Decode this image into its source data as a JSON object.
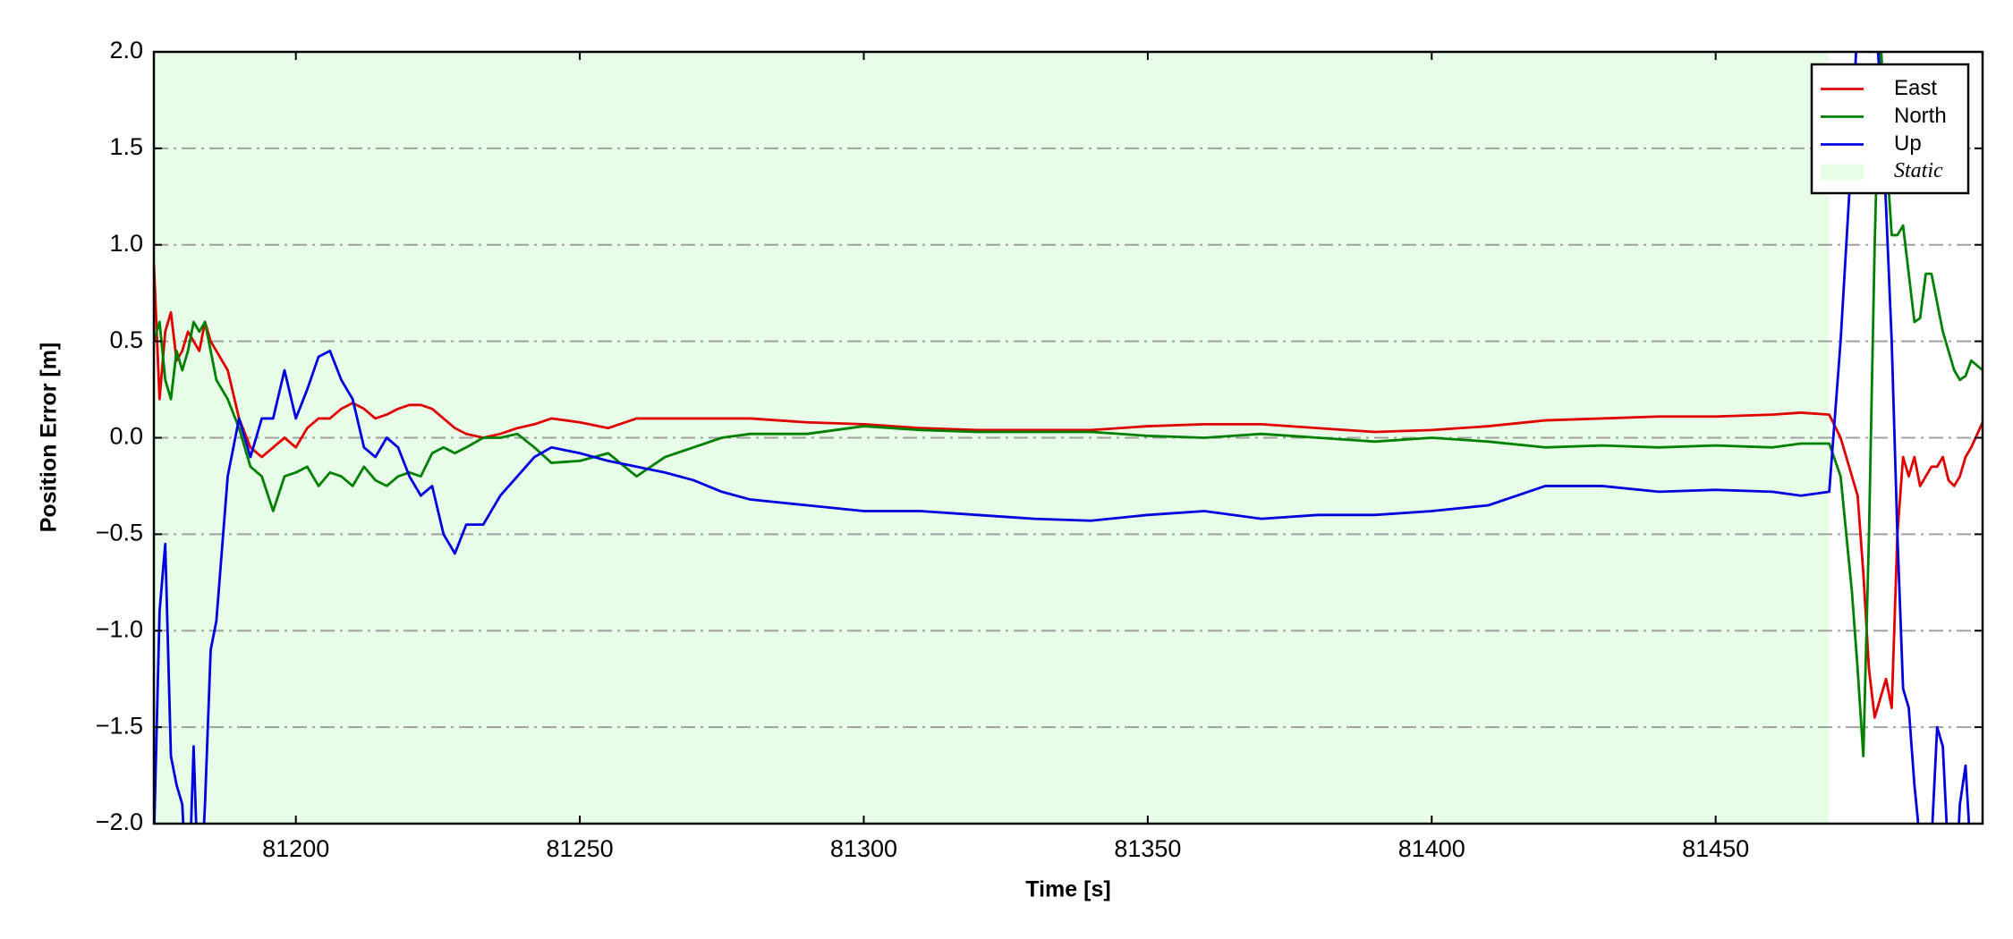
{
  "chart_data": {
    "type": "line",
    "xlabel": "Time [s]",
    "ylabel": "Position Error [m]",
    "xlim": [
      81175,
      81497
    ],
    "ylim": [
      -2.0,
      2.0
    ],
    "xticks": [
      81200,
      81250,
      81300,
      81350,
      81400,
      81450
    ],
    "yticks": [
      {
        "value": -2.0,
        "label": "−2.0"
      },
      {
        "value": -1.5,
        "label": "−1.5"
      },
      {
        "value": -1.0,
        "label": "−1.0"
      },
      {
        "value": -0.5,
        "label": "−0.5"
      },
      {
        "value": 0.0,
        "label": "0.0"
      },
      {
        "value": 0.5,
        "label": "0.5"
      },
      {
        "value": 1.0,
        "label": "1.0"
      },
      {
        "value": 1.5,
        "label": "1.5"
      },
      {
        "value": 2.0,
        "label": "2.0"
      }
    ],
    "grid": true,
    "legend": "upper right",
    "static": {
      "label": "Static",
      "range": [
        81175,
        81470
      ],
      "color": "#e8fde8"
    },
    "x": [
      81175,
      81176,
      81177,
      81178,
      81179,
      81180,
      81181,
      81182,
      81183,
      81184,
      81185,
      81186,
      81188,
      81190,
      81192,
      81194,
      81196,
      81198,
      81200,
      81202,
      81204,
      81206,
      81208,
      81210,
      81212,
      81214,
      81216,
      81218,
      81220,
      81222,
      81224,
      81226,
      81228,
      81230,
      81233,
      81236,
      81239,
      81242,
      81245,
      81250,
      81255,
      81260,
      81265,
      81270,
      81275,
      81280,
      81290,
      81300,
      81310,
      81320,
      81330,
      81340,
      81350,
      81360,
      81370,
      81380,
      81390,
      81400,
      81410,
      81420,
      81430,
      81440,
      81450,
      81460,
      81465,
      81470,
      81472,
      81474,
      81475,
      81476,
      81477,
      81478,
      81479,
      81480,
      81481,
      81482,
      81483,
      81484,
      81485,
      81486,
      81487,
      81488,
      81489,
      81490,
      81491,
      81492,
      81493,
      81494,
      81495,
      81497
    ],
    "series": [
      {
        "name": "East",
        "color": "#e00000",
        "values": [
          0.9,
          0.2,
          0.55,
          0.65,
          0.4,
          0.45,
          0.55,
          0.5,
          0.45,
          0.6,
          0.5,
          0.45,
          0.35,
          0.1,
          -0.05,
          -0.1,
          -0.05,
          0.0,
          -0.05,
          0.05,
          0.1,
          0.1,
          0.15,
          0.18,
          0.15,
          0.1,
          0.12,
          0.15,
          0.17,
          0.17,
          0.15,
          0.1,
          0.05,
          0.02,
          0.0,
          0.02,
          0.05,
          0.07,
          0.1,
          0.08,
          0.05,
          0.1,
          0.1,
          0.1,
          0.1,
          0.1,
          0.08,
          0.07,
          0.05,
          0.04,
          0.04,
          0.04,
          0.06,
          0.07,
          0.07,
          0.05,
          0.03,
          0.04,
          0.06,
          0.09,
          0.1,
          0.11,
          0.11,
          0.12,
          0.13,
          0.12,
          0.0,
          -0.2,
          -0.3,
          -0.7,
          -1.2,
          -1.45,
          -1.35,
          -1.25,
          -1.4,
          -0.5,
          -0.1,
          -0.2,
          -0.1,
          -0.25,
          -0.2,
          -0.15,
          -0.15,
          -0.1,
          -0.22,
          -0.25,
          -0.2,
          -0.1,
          -0.05,
          0.08
        ]
      },
      {
        "name": "North",
        "color": "#008000",
        "values": [
          0.5,
          0.6,
          0.3,
          0.2,
          0.45,
          0.35,
          0.45,
          0.6,
          0.55,
          0.6,
          0.45,
          0.3,
          0.2,
          0.05,
          -0.15,
          -0.2,
          -0.38,
          -0.2,
          -0.18,
          -0.15,
          -0.25,
          -0.18,
          -0.2,
          -0.25,
          -0.15,
          -0.22,
          -0.25,
          -0.2,
          -0.18,
          -0.2,
          -0.08,
          -0.05,
          -0.08,
          -0.05,
          0.0,
          0.0,
          0.02,
          -0.05,
          -0.13,
          -0.12,
          -0.08,
          -0.2,
          -0.1,
          -0.05,
          0.0,
          0.02,
          0.02,
          0.06,
          0.04,
          0.03,
          0.03,
          0.03,
          0.01,
          0.0,
          0.02,
          0.0,
          -0.02,
          0.0,
          -0.02,
          -0.05,
          -0.04,
          -0.05,
          -0.04,
          -0.05,
          -0.03,
          -0.03,
          -0.2,
          -0.8,
          -1.2,
          -1.65,
          -0.5,
          1.0,
          2.1,
          1.5,
          1.05,
          1.05,
          1.1,
          0.85,
          0.6,
          0.62,
          0.85,
          0.85,
          0.7,
          0.55,
          0.45,
          0.35,
          0.3,
          0.32,
          0.4,
          0.35
        ]
      },
      {
        "name": "Up",
        "color": "#0000e0",
        "values": [
          -2.1,
          -0.9,
          -0.55,
          -1.65,
          -1.8,
          -1.9,
          -2.5,
          -1.6,
          -2.5,
          -1.9,
          -1.1,
          -0.95,
          -0.2,
          0.1,
          -0.1,
          0.1,
          0.1,
          0.35,
          0.1,
          0.25,
          0.42,
          0.45,
          0.3,
          0.2,
          -0.05,
          -0.1,
          0.0,
          -0.05,
          -0.2,
          -0.3,
          -0.25,
          -0.5,
          -0.6,
          -0.45,
          -0.45,
          -0.3,
          -0.2,
          -0.1,
          -0.05,
          -0.08,
          -0.12,
          -0.15,
          -0.18,
          -0.22,
          -0.28,
          -0.32,
          -0.35,
          -0.38,
          -0.38,
          -0.4,
          -0.42,
          -0.43,
          -0.4,
          -0.38,
          -0.42,
          -0.4,
          -0.4,
          -0.38,
          -0.35,
          -0.25,
          -0.25,
          -0.28,
          -0.27,
          -0.28,
          -0.3,
          -0.28,
          0.5,
          1.5,
          2.2,
          2.5,
          2.0,
          2.3,
          1.8,
          1.2,
          0.5,
          -0.5,
          -1.3,
          -1.4,
          -1.8,
          -2.1,
          -2.5,
          -2.1,
          -1.5,
          -1.6,
          -2.2,
          -2.5,
          -1.9,
          -1.7,
          -2.2,
          -2.5
        ]
      }
    ]
  }
}
